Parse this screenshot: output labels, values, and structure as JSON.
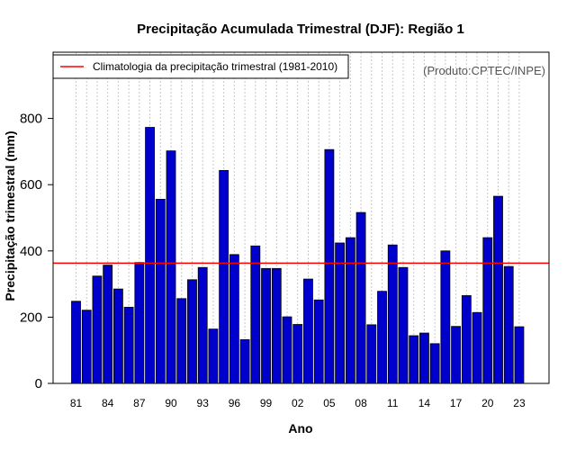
{
  "chart_data": {
    "type": "bar",
    "title": "Precipitação Acumulada Trimestral (DJF): Região 1",
    "xlabel": "Ano",
    "ylabel": "Precipitação trimestral (mm)",
    "credit": "(Produto:CPTEC/INPE)",
    "ylim": [
      0,
      1000
    ],
    "yticks": [
      0,
      200,
      400,
      600,
      800
    ],
    "grid": "vertical dotted",
    "legend_position": "top-left",
    "categories": [
      "1981",
      "1982",
      "1983",
      "1984",
      "1985",
      "1986",
      "1987",
      "1988",
      "1989",
      "1990",
      "1991",
      "1992",
      "1993",
      "1994",
      "1995",
      "1996",
      "1997",
      "1998",
      "1999",
      "2000",
      "2001",
      "2002",
      "2003",
      "2004",
      "2005",
      "2006",
      "2007",
      "2008",
      "2009",
      "2010",
      "2011",
      "2012",
      "2013",
      "2014",
      "2015",
      "2016",
      "2017",
      "2018",
      "2019",
      "2020",
      "2021",
      "2022",
      "2023"
    ],
    "tick_labels": [
      "81",
      "84",
      "87",
      "90",
      "93",
      "96",
      "99",
      "02",
      "05",
      "08",
      "11",
      "14",
      "17",
      "20",
      "23"
    ],
    "values": [
      248,
      221,
      324,
      357,
      285,
      230,
      365,
      773,
      556,
      702,
      256,
      313,
      350,
      164,
      643,
      389,
      132,
      415,
      347,
      347,
      201,
      178,
      315,
      252,
      706,
      424,
      440,
      516,
      177,
      278,
      418,
      350,
      144,
      152,
      120,
      400,
      172,
      265,
      214,
      440,
      565,
      353,
      171
    ],
    "bar_color": "#0000cd",
    "climatology": {
      "value": 363,
      "color": "#ff0000",
      "label": "Climatologia da precipitação trimestral (1981-2010)"
    }
  }
}
